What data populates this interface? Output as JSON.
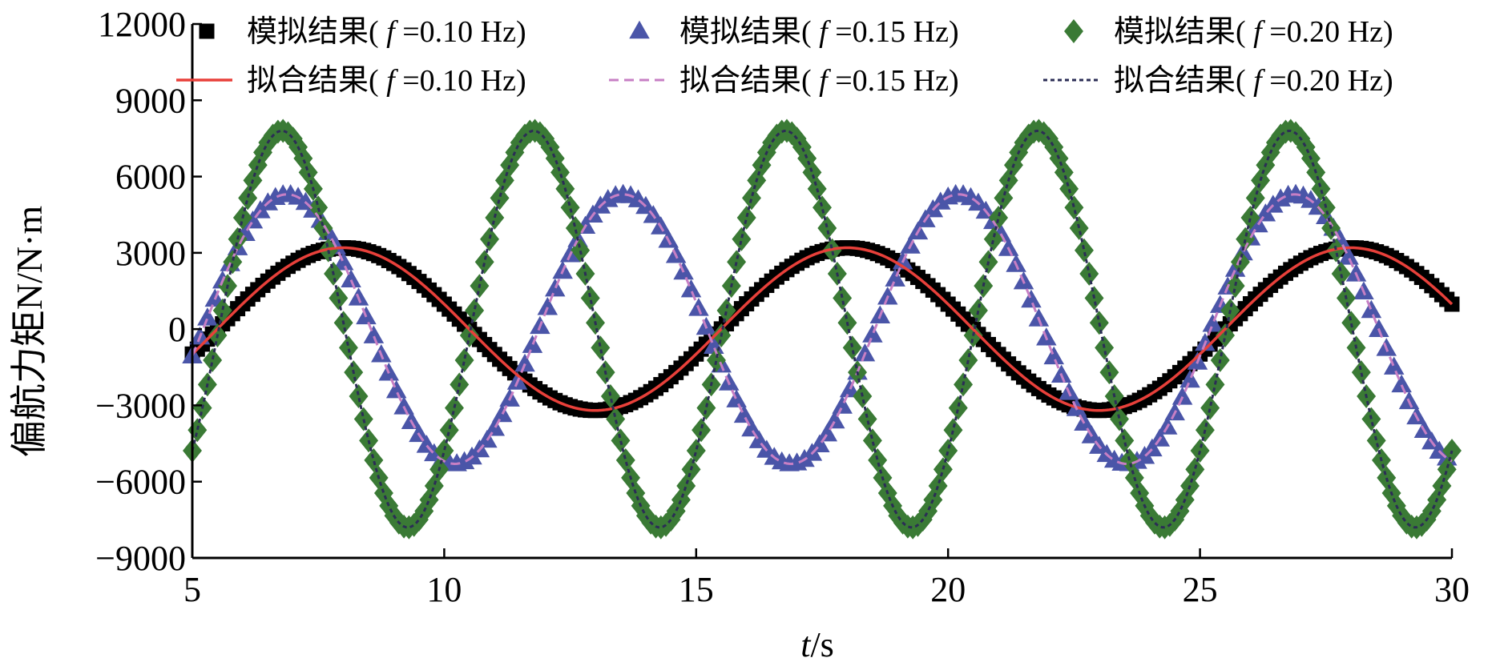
{
  "chart_data": {
    "type": "scatter",
    "xlabel": "t/s",
    "xlabel_var": "t",
    "xlabel_unit": "/s",
    "ylabel": "偏航力矩N/N·m",
    "xlim": [
      5,
      30
    ],
    "ylim": [
      -9000,
      12000
    ],
    "xticks": [
      5,
      10,
      15,
      20,
      25,
      30
    ],
    "yticks": [
      -9000,
      -6000,
      -3000,
      0,
      3000,
      6000,
      9000,
      12000
    ],
    "xtick_labels": [
      "5",
      "10",
      "15",
      "20",
      "25",
      "30"
    ],
    "ytick_labels": [
      "−9000",
      "−6000",
      "−3000",
      "0",
      "3000",
      "6000",
      "9000",
      "12000"
    ],
    "grid": false,
    "legend_position": "top",
    "colors": {
      "sim_0.10": "#000000",
      "sim_0.15": "#4a55a8",
      "sim_0.20": "#3a7a35",
      "fit_0.10": "#e8403a",
      "fit_0.15": "#c77fc4",
      "fit_0.20": "#2b2d55"
    },
    "model": "y = A·sin(2π·f·t + φ)",
    "series": [
      {
        "name": "模拟结果( f =0.10 Hz)",
        "label_pre": "模拟结果(",
        "label_post": "=0.10 Hz)",
        "kind": "markers",
        "marker": "square",
        "color": "#000000",
        "frequency": 0.1,
        "amplitude": 3200,
        "phase": 2.83,
        "x_start": 5,
        "x_end": 30,
        "x_step": 0.1
      },
      {
        "name": "模拟结果( f =0.15 Hz)",
        "label_pre": "模拟结果(",
        "label_post": "=0.15 Hz)",
        "kind": "markers",
        "marker": "triangle",
        "color": "#4a55a8",
        "frequency": 0.15,
        "amplitude": 5300,
        "phase": 1.37,
        "x_start": 5,
        "x_end": 30,
        "x_step": 0.15
      },
      {
        "name": "模拟结果( f =0.20 Hz)",
        "label_pre": "模拟结果(",
        "label_post": "=0.20 Hz)",
        "kind": "markers",
        "marker": "diamond",
        "color": "#3a7a35",
        "frequency": 0.2,
        "amplitude": 7800,
        "phase": -0.66,
        "x_start": 5,
        "x_end": 30,
        "x_step": 0.1
      },
      {
        "name": "拟合结果( f =0.10 Hz)",
        "label_pre": "拟合结果(",
        "label_post": "=0.10 Hz)",
        "kind": "line",
        "dash": "solid",
        "color": "#e8403a",
        "frequency": 0.1,
        "amplitude": 3200,
        "phase": 2.83
      },
      {
        "name": "拟合结果( f =0.15 Hz)",
        "label_pre": "拟合结果(",
        "label_post": "=0.15 Hz)",
        "kind": "line",
        "dash": "dashed",
        "color": "#c77fc4",
        "frequency": 0.15,
        "amplitude": 5300,
        "phase": 1.37
      },
      {
        "name": "拟合结果( f =0.20 Hz)",
        "label_pre": "拟合结果(",
        "label_post": "=0.20 Hz)",
        "kind": "line",
        "dash": "dotted",
        "color": "#2b2d55",
        "frequency": 0.2,
        "amplitude": 7800,
        "phase": -0.66
      }
    ],
    "legend_f_symbol": "f"
  }
}
